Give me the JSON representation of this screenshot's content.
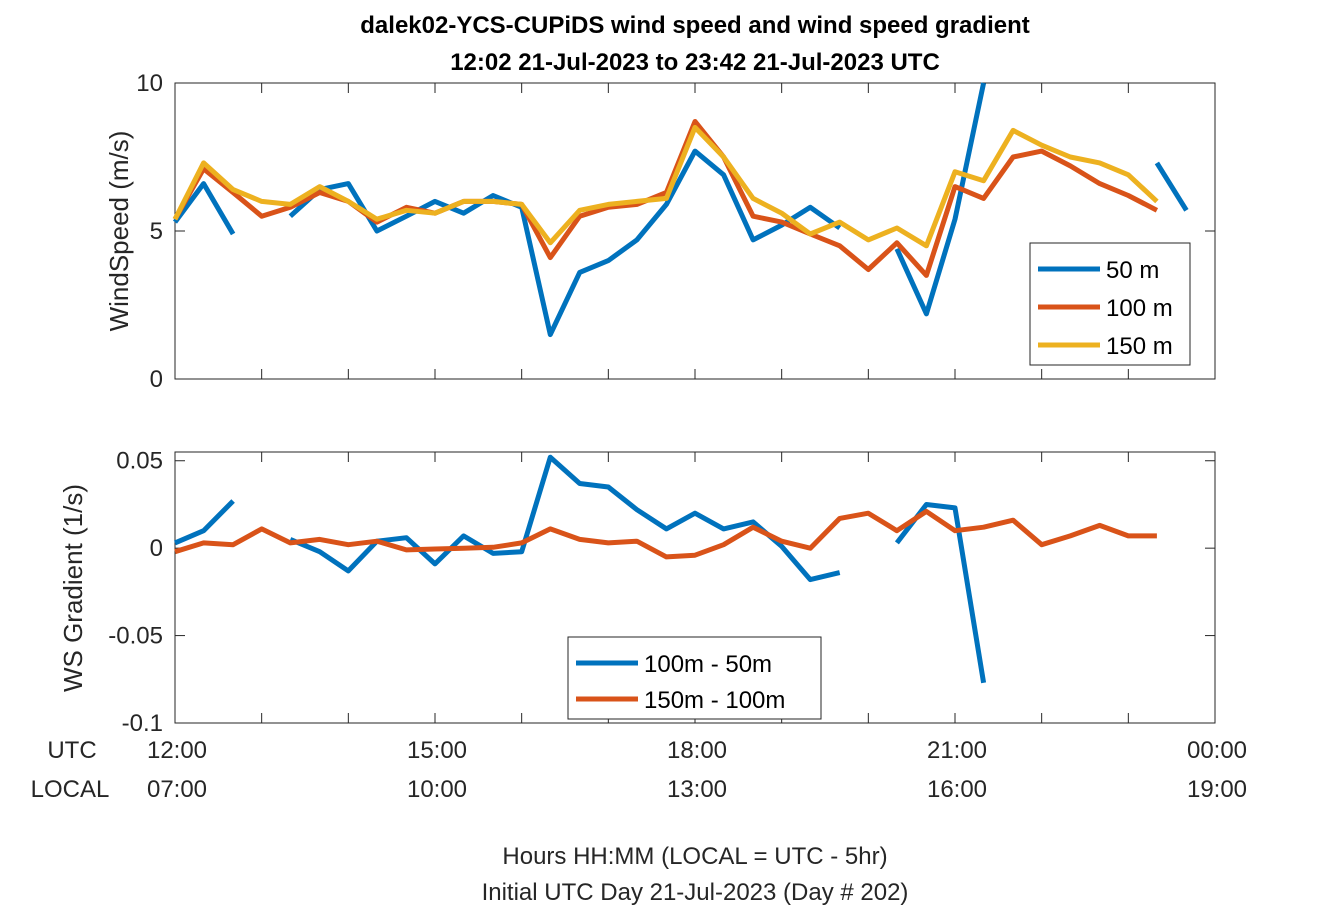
{
  "title_line1": "dalek02-YCS-CUPiDS  wind speed and wind speed gradient",
  "title_line2": "12:02 21-Jul-2023 to 23:42 21-Jul-2023  UTC",
  "row_labels": {
    "utc": "UTC",
    "local": "LOCAL"
  },
  "xtick_utc": [
    "12:00",
    "15:00",
    "18:00",
    "21:00",
    "00:00"
  ],
  "xtick_local": [
    "07:00",
    "10:00",
    "13:00",
    "16:00",
    "19:00"
  ],
  "footer_line1": "Hours HH:MM  (LOCAL = UTC - 5hr)",
  "footer_line2": "Initial UTC Day 21-Jul-2023 (Day # 202)",
  "colors": {
    "blue": "#0072BD",
    "orange": "#D95319",
    "yellow": "#EDB120"
  },
  "chart_data": [
    {
      "type": "line",
      "ylabel": "WindSpeed (m/s)",
      "xlim": [
        12,
        24
      ],
      "ylim": [
        0,
        10
      ],
      "yticks": [
        0,
        5,
        10
      ],
      "ytick_labels": [
        "0",
        "5",
        "10"
      ],
      "legend_position": "right",
      "series": [
        {
          "name": "50 m",
          "color": "#0072BD",
          "x": [
            12.0,
            12.33,
            12.67,
            null,
            13.33,
            13.67,
            14.0,
            14.33,
            14.67,
            15.0,
            15.33,
            15.67,
            16.0,
            16.33,
            16.67,
            17.0,
            17.33,
            17.67,
            18.0,
            18.33,
            18.67,
            19.0,
            19.33,
            19.67,
            null,
            20.33,
            20.67,
            21.0,
            21.33,
            null,
            22.0,
            22.33,
            22.67,
            23.0,
            23.33,
            23.67
          ],
          "y": [
            5.3,
            6.6,
            4.9,
            null,
            5.5,
            6.4,
            6.6,
            5.0,
            5.5,
            6.0,
            5.6,
            6.2,
            5.8,
            1.5,
            3.6,
            4.0,
            4.7,
            5.9,
            7.7,
            6.9,
            4.7,
            5.2,
            5.8,
            5.1,
            null,
            4.4,
            2.2,
            5.4,
            10.0,
            null,
            null,
            null,
            null,
            null,
            7.3,
            5.7
          ]
        },
        {
          "name": "100 m",
          "color": "#D95319",
          "x": [
            12.0,
            12.33,
            12.67,
            13.0,
            13.33,
            13.67,
            14.0,
            14.33,
            14.67,
            15.0,
            15.33,
            15.67,
            16.0,
            16.33,
            16.67,
            17.0,
            17.33,
            17.67,
            18.0,
            18.33,
            18.67,
            19.0,
            19.33,
            19.67,
            20.0,
            20.33,
            20.67,
            21.0,
            21.33,
            21.67,
            22.0,
            22.33,
            22.67,
            23.0,
            23.33
          ],
          "y": [
            5.4,
            7.1,
            6.3,
            5.5,
            5.8,
            6.3,
            6.0,
            5.3,
            5.8,
            5.6,
            6.0,
            6.0,
            5.9,
            4.1,
            5.5,
            5.8,
            5.9,
            6.3,
            8.7,
            7.5,
            5.5,
            5.3,
            4.9,
            4.5,
            3.7,
            4.6,
            3.5,
            6.5,
            6.1,
            7.5,
            7.7,
            7.2,
            6.6,
            6.2,
            5.7
          ]
        },
        {
          "name": "150 m",
          "color": "#EDB120",
          "x": [
            12.0,
            12.33,
            12.67,
            13.0,
            13.33,
            13.67,
            14.0,
            14.33,
            14.67,
            15.0,
            15.33,
            15.67,
            16.0,
            16.33,
            16.67,
            17.0,
            17.33,
            17.67,
            18.0,
            18.33,
            18.67,
            19.0,
            19.33,
            19.67,
            20.0,
            20.33,
            20.67,
            21.0,
            21.33,
            21.67,
            22.0,
            22.33,
            22.67,
            23.0,
            23.33
          ],
          "y": [
            5.4,
            7.3,
            6.4,
            6.0,
            5.9,
            6.5,
            6.0,
            5.4,
            5.7,
            5.6,
            6.0,
            6.0,
            5.9,
            4.6,
            5.7,
            5.9,
            6.0,
            6.1,
            8.5,
            7.5,
            6.1,
            5.6,
            4.9,
            5.3,
            4.7,
            5.1,
            4.5,
            7.0,
            6.7,
            8.4,
            7.9,
            7.5,
            7.3,
            6.9,
            6.0
          ]
        }
      ]
    },
    {
      "type": "line",
      "ylabel": "WS Gradient (1/s)",
      "xlim": [
        12,
        24
      ],
      "ylim": [
        -0.1,
        0.055
      ],
      "yticks": [
        -0.1,
        -0.05,
        0,
        0.05
      ],
      "ytick_labels": [
        "-0.1",
        "-0.05",
        "0",
        "0.05"
      ],
      "legend_position": "bottom-center",
      "series": [
        {
          "name": "100m - 50m",
          "color": "#0072BD",
          "x": [
            12.0,
            12.33,
            12.67,
            null,
            13.33,
            13.67,
            14.0,
            14.33,
            14.67,
            15.0,
            15.33,
            15.67,
            16.0,
            16.33,
            16.67,
            17.0,
            17.33,
            17.67,
            18.0,
            18.33,
            18.67,
            19.0,
            19.33,
            19.67,
            null,
            20.33,
            20.67,
            21.0,
            21.33
          ],
          "y": [
            0.003,
            0.01,
            0.027,
            null,
            0.005,
            -0.002,
            -0.013,
            0.004,
            0.006,
            -0.009,
            0.007,
            -0.003,
            -0.002,
            0.052,
            0.037,
            0.035,
            0.022,
            0.011,
            0.02,
            0.011,
            0.015,
            0.001,
            -0.018,
            -0.014,
            null,
            0.003,
            0.025,
            0.023,
            -0.077
          ]
        },
        {
          "name": "150m - 100m",
          "color": "#D95319",
          "x": [
            12.0,
            12.33,
            12.67,
            13.0,
            13.33,
            13.67,
            14.0,
            14.33,
            14.67,
            15.0,
            15.33,
            15.67,
            16.0,
            16.33,
            16.67,
            17.0,
            17.33,
            17.67,
            18.0,
            18.33,
            18.67,
            19.0,
            19.33,
            19.67,
            20.0,
            20.33,
            20.67,
            21.0,
            21.33,
            21.67,
            22.0,
            22.33,
            22.67,
            23.0,
            23.33
          ],
          "y": [
            -0.002,
            0.003,
            0.002,
            0.011,
            0.003,
            0.005,
            0.002,
            0.004,
            -0.001,
            -0.0005,
            0.0,
            0.0005,
            0.003,
            0.011,
            0.005,
            0.003,
            0.004,
            -0.005,
            -0.004,
            0.002,
            0.012,
            0.004,
            0.0,
            0.017,
            0.02,
            0.01,
            0.021,
            0.01,
            0.012,
            0.016,
            0.002,
            0.007,
            0.013,
            0.007,
            0.007
          ]
        }
      ]
    }
  ]
}
